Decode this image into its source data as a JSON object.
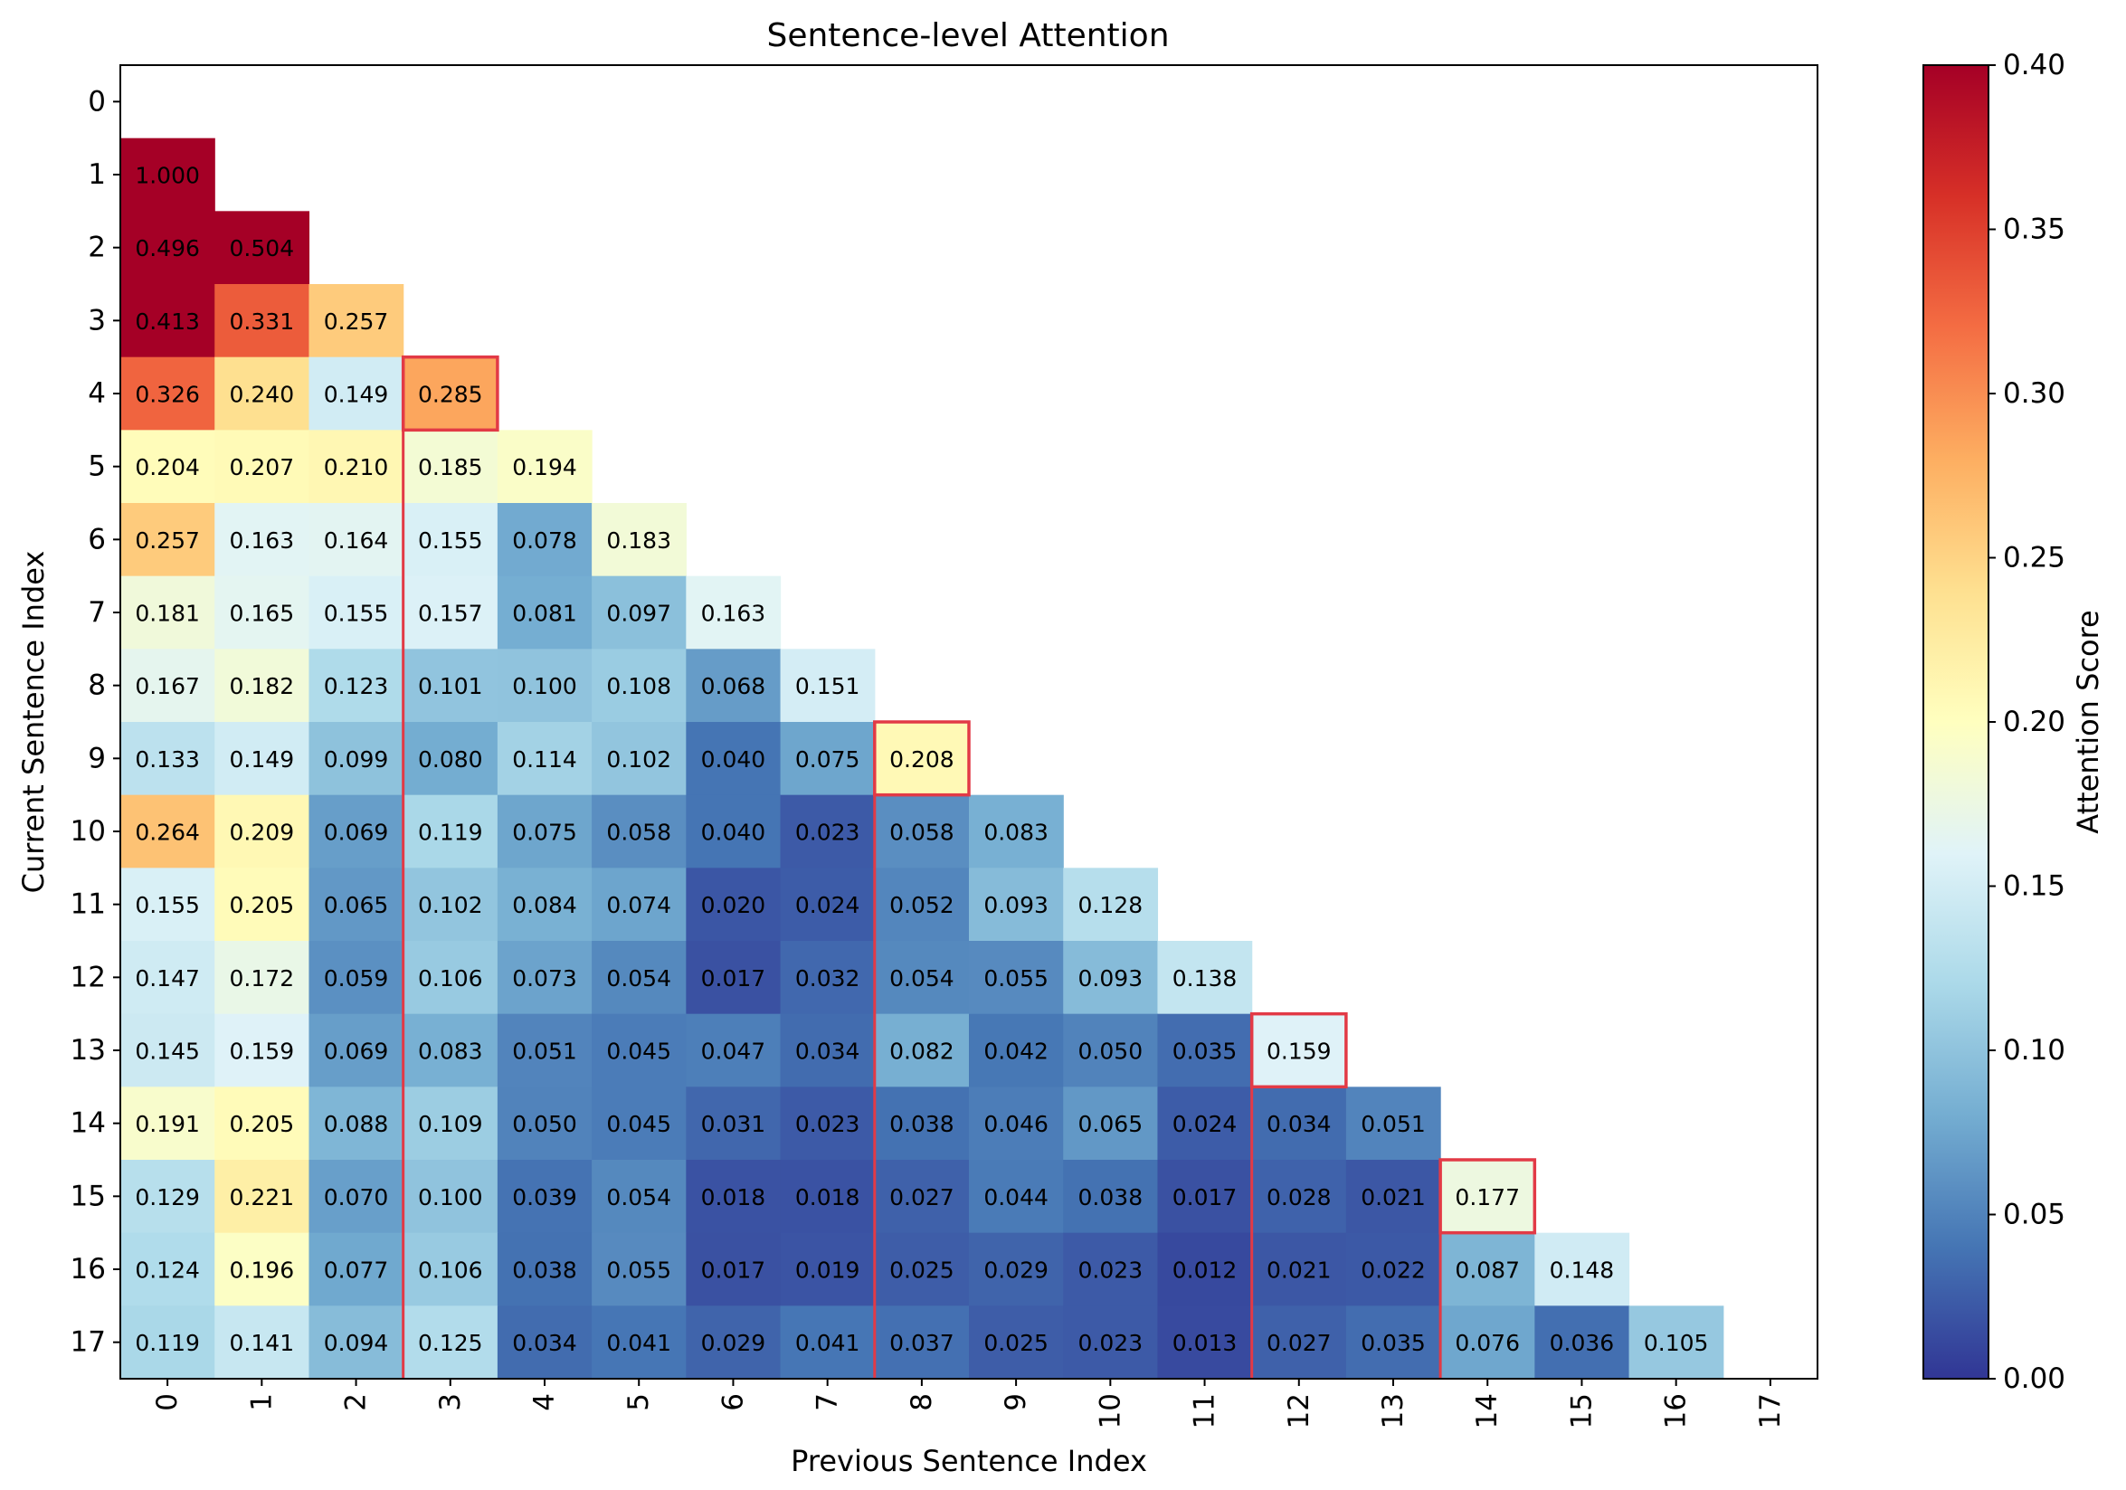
{
  "chart_data": {
    "type": "heatmap",
    "title": "Sentence-level Attention",
    "xlabel": "Previous Sentence Index",
    "ylabel": "Current Sentence Index",
    "x_ticks": [
      "0",
      "1",
      "2",
      "3",
      "4",
      "5",
      "6",
      "7",
      "8",
      "9",
      "10",
      "11",
      "12",
      "13",
      "14",
      "15",
      "16",
      "17"
    ],
    "y_ticks": [
      "0",
      "1",
      "2",
      "3",
      "4",
      "5",
      "6",
      "7",
      "8",
      "9",
      "10",
      "11",
      "12",
      "13",
      "14",
      "15",
      "16",
      "17"
    ],
    "colorbar": {
      "label": "Attention Score",
      "min": 0.0,
      "max": 0.4,
      "ticks": [
        "0.00",
        "0.05",
        "0.10",
        "0.15",
        "0.20",
        "0.25",
        "0.30",
        "0.35",
        "0.40"
      ],
      "colormap": "RdYlBu_r"
    },
    "rows": [
      [],
      [
        "1.000"
      ],
      [
        "0.496",
        "0.504"
      ],
      [
        "0.413",
        "0.331",
        "0.257"
      ],
      [
        "0.326",
        "0.240",
        "0.149",
        "0.285"
      ],
      [
        "0.204",
        "0.207",
        "0.210",
        "0.185",
        "0.194"
      ],
      [
        "0.257",
        "0.163",
        "0.164",
        "0.155",
        "0.078",
        "0.183"
      ],
      [
        "0.181",
        "0.165",
        "0.155",
        "0.157",
        "0.081",
        "0.097",
        "0.163"
      ],
      [
        "0.167",
        "0.182",
        "0.123",
        "0.101",
        "0.100",
        "0.108",
        "0.068",
        "0.151"
      ],
      [
        "0.133",
        "0.149",
        "0.099",
        "0.080",
        "0.114",
        "0.102",
        "0.040",
        "0.075",
        "0.208"
      ],
      [
        "0.264",
        "0.209",
        "0.069",
        "0.119",
        "0.075",
        "0.058",
        "0.040",
        "0.023",
        "0.058",
        "0.083"
      ],
      [
        "0.155",
        "0.205",
        "0.065",
        "0.102",
        "0.084",
        "0.074",
        "0.020",
        "0.024",
        "0.052",
        "0.093",
        "0.128"
      ],
      [
        "0.147",
        "0.172",
        "0.059",
        "0.106",
        "0.073",
        "0.054",
        "0.017",
        "0.032",
        "0.054",
        "0.055",
        "0.093",
        "0.138"
      ],
      [
        "0.145",
        "0.159",
        "0.069",
        "0.083",
        "0.051",
        "0.045",
        "0.047",
        "0.034",
        "0.082",
        "0.042",
        "0.050",
        "0.035",
        "0.159"
      ],
      [
        "0.191",
        "0.205",
        "0.088",
        "0.109",
        "0.050",
        "0.045",
        "0.031",
        "0.023",
        "0.038",
        "0.046",
        "0.065",
        "0.024",
        "0.034",
        "0.051"
      ],
      [
        "0.129",
        "0.221",
        "0.070",
        "0.100",
        "0.039",
        "0.054",
        "0.018",
        "0.018",
        "0.027",
        "0.044",
        "0.038",
        "0.017",
        "0.028",
        "0.021",
        "0.177"
      ],
      [
        "0.124",
        "0.196",
        "0.077",
        "0.106",
        "0.038",
        "0.055",
        "0.017",
        "0.019",
        "0.025",
        "0.029",
        "0.023",
        "0.012",
        "0.021",
        "0.022",
        "0.087",
        "0.148"
      ],
      [
        "0.119",
        "0.141",
        "0.094",
        "0.125",
        "0.034",
        "0.041",
        "0.029",
        "0.041",
        "0.037",
        "0.025",
        "0.023",
        "0.013",
        "0.027",
        "0.035",
        "0.076",
        "0.036",
        "0.105"
      ]
    ],
    "highlighted_cells": [
      [
        4,
        3
      ],
      [
        9,
        8
      ],
      [
        13,
        12
      ],
      [
        15,
        14
      ]
    ],
    "boundary_after_columns": [
      2,
      7,
      11,
      13
    ],
    "annotation_color": "#e23a46"
  }
}
